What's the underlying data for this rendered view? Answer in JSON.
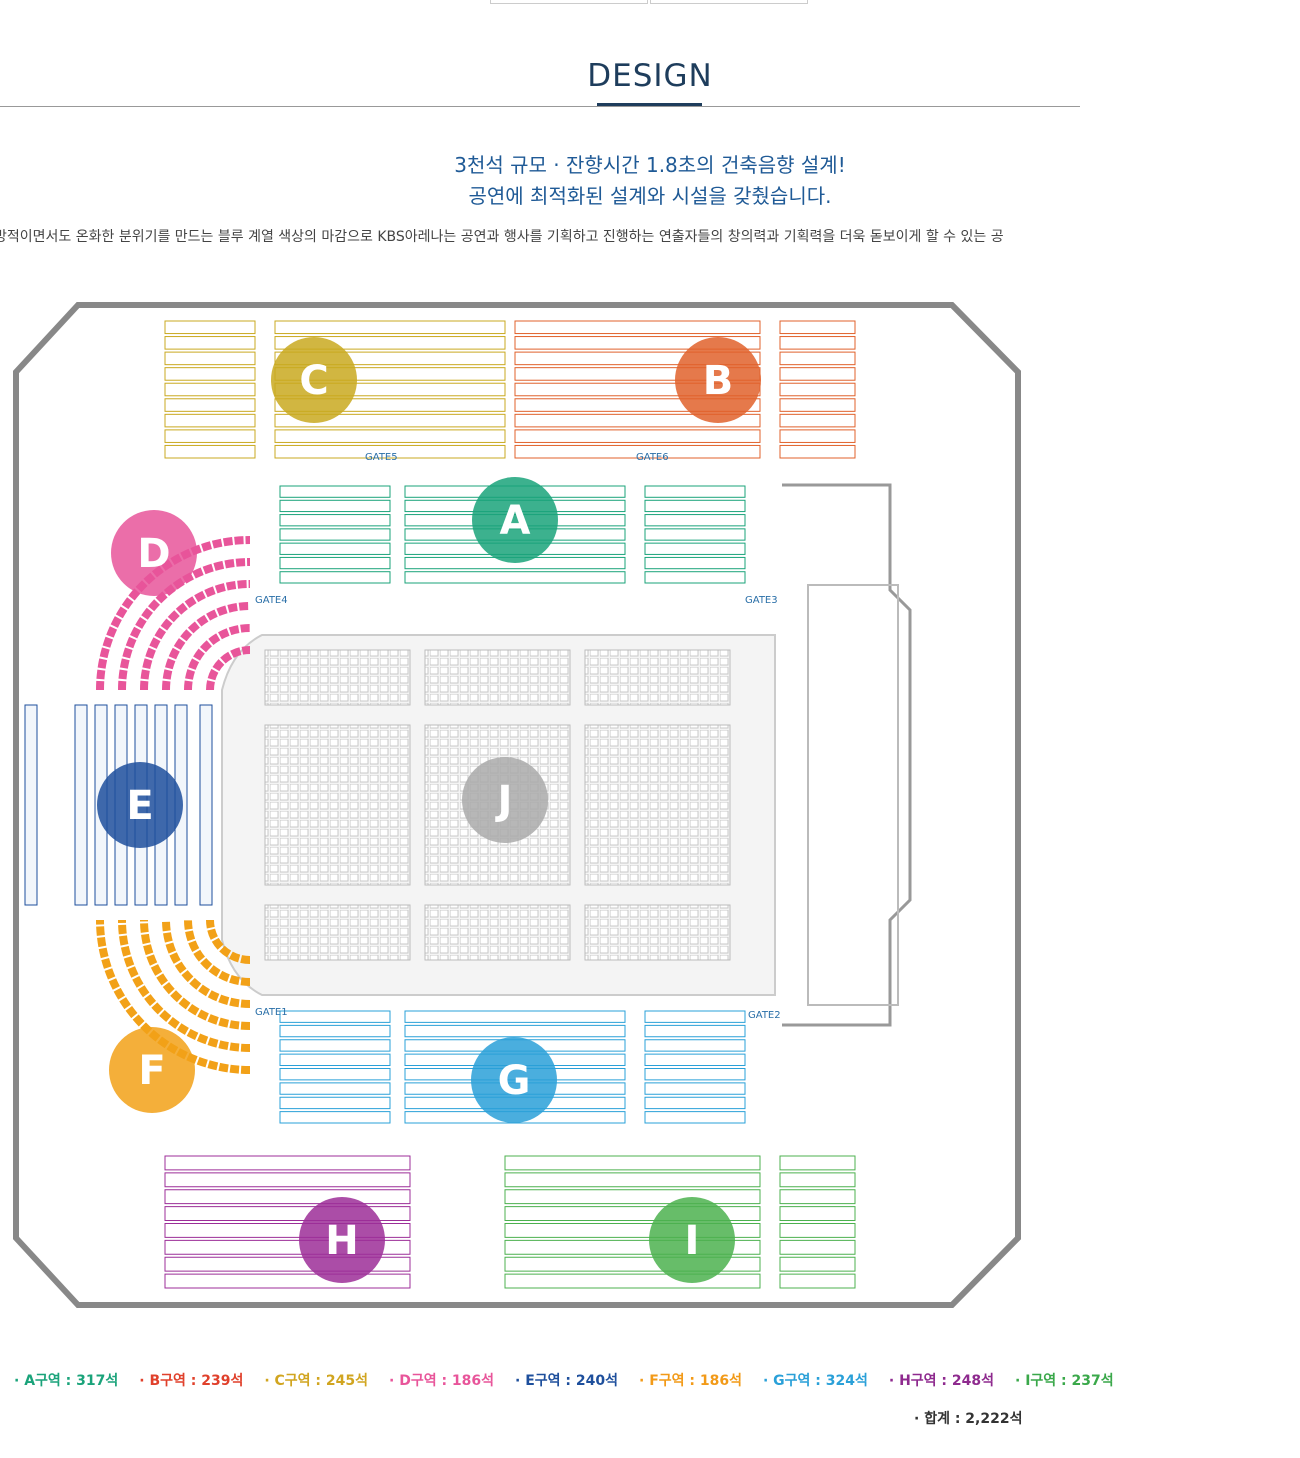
{
  "page": {
    "title": "DESIGN",
    "headline_1": "3천석 규모 · 잔향시간 1.8초의 건축음향 설계!",
    "headline_2": "공연에 최적화된 설계와 시설을 갖췄습니다.",
    "description": "방적이면서도 온화한 분위기를 만드는 블루 계열 색상의 마감으로 KBS아레나는 공연과 행사를 기획하고 진행하는 연출자들의 창의력과 기획력을 더욱 돋보이게 할 수 있는 공"
  },
  "gates": [
    "GATE1",
    "GATE2",
    "GATE3",
    "GATE4",
    "GATE5",
    "GATE6"
  ],
  "zones": [
    {
      "id": "A",
      "color": "#1aa37a"
    },
    {
      "id": "B",
      "color": "#e0612b"
    },
    {
      "id": "C",
      "color": "#c9a920"
    },
    {
      "id": "D",
      "color": "#e8559a"
    },
    {
      "id": "E",
      "color": "#1e4f9c"
    },
    {
      "id": "F",
      "color": "#f2a118"
    },
    {
      "id": "G",
      "color": "#2aa0d8"
    },
    {
      "id": "H",
      "color": "#9c2e98"
    },
    {
      "id": "I",
      "color": "#4cb14f"
    },
    {
      "id": "J",
      "color": "#aaaaaa"
    }
  ],
  "legend": [
    {
      "text": "· A구역 : 317석",
      "color": "#1aa37a"
    },
    {
      "text": "· B구역 : 239석",
      "color": "#e0402b"
    },
    {
      "text": "· C구역 : 245석",
      "color": "#d1a520"
    },
    {
      "text": "· D구역 : 186석",
      "color": "#e8559a"
    },
    {
      "text": "· E구역 : 240석",
      "color": "#1e4f9c"
    },
    {
      "text": "· F구역 : 186석",
      "color": "#f29a18"
    },
    {
      "text": "· G구역 : 324석",
      "color": "#2aa0d8"
    },
    {
      "text": "· H구역 : 248석",
      "color": "#8e2a8e"
    },
    {
      "text": "· I구역 : 237석",
      "color": "#3aa84a"
    }
  ],
  "total": "· 합계 : 2,222석"
}
